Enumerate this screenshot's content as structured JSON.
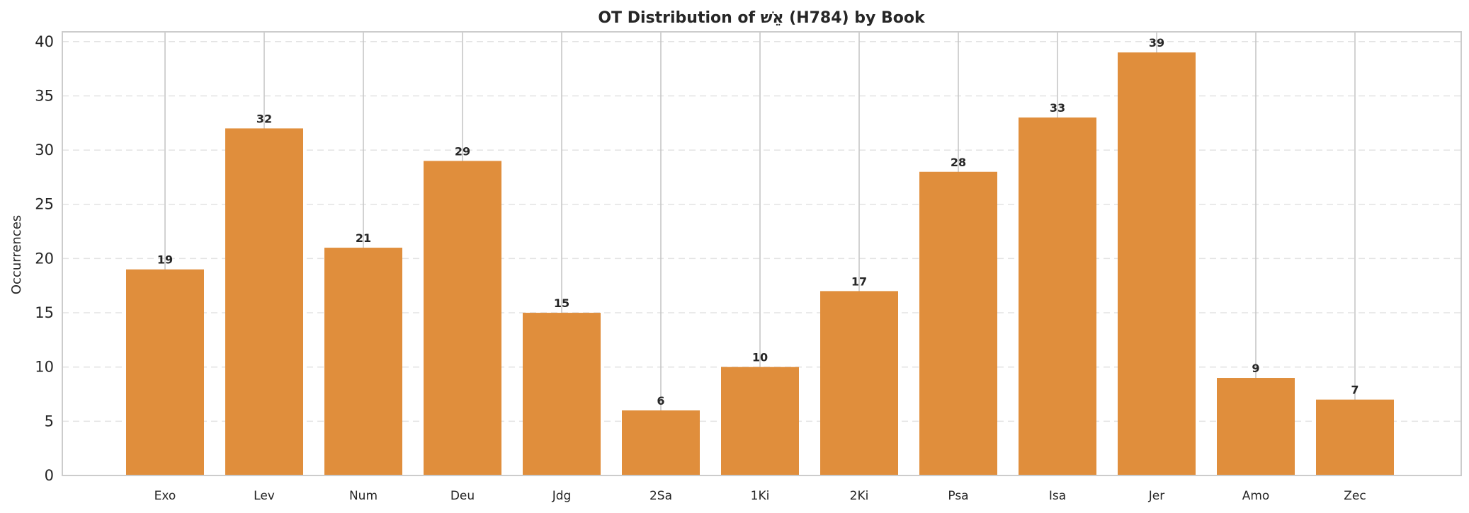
{
  "chart_data": {
    "type": "bar",
    "title": "OT Distribution of אֵשׁ (H784) by Book",
    "xlabel": "",
    "ylabel": "Occurrences",
    "categories": [
      "Exo",
      "Lev",
      "Num",
      "Deu",
      "Jdg",
      "2Sa",
      "1Ki",
      "2Ki",
      "Psa",
      "Isa",
      "Jer",
      "Amo",
      "Zec"
    ],
    "values": [
      19,
      32,
      21,
      29,
      15,
      6,
      10,
      17,
      28,
      33,
      39,
      9,
      7
    ],
    "ylim": [
      0,
      40.9
    ],
    "yticks": [
      0,
      5,
      10,
      15,
      20,
      25,
      30,
      35,
      40
    ],
    "grid": true,
    "bar_color": "#E08E3C"
  }
}
